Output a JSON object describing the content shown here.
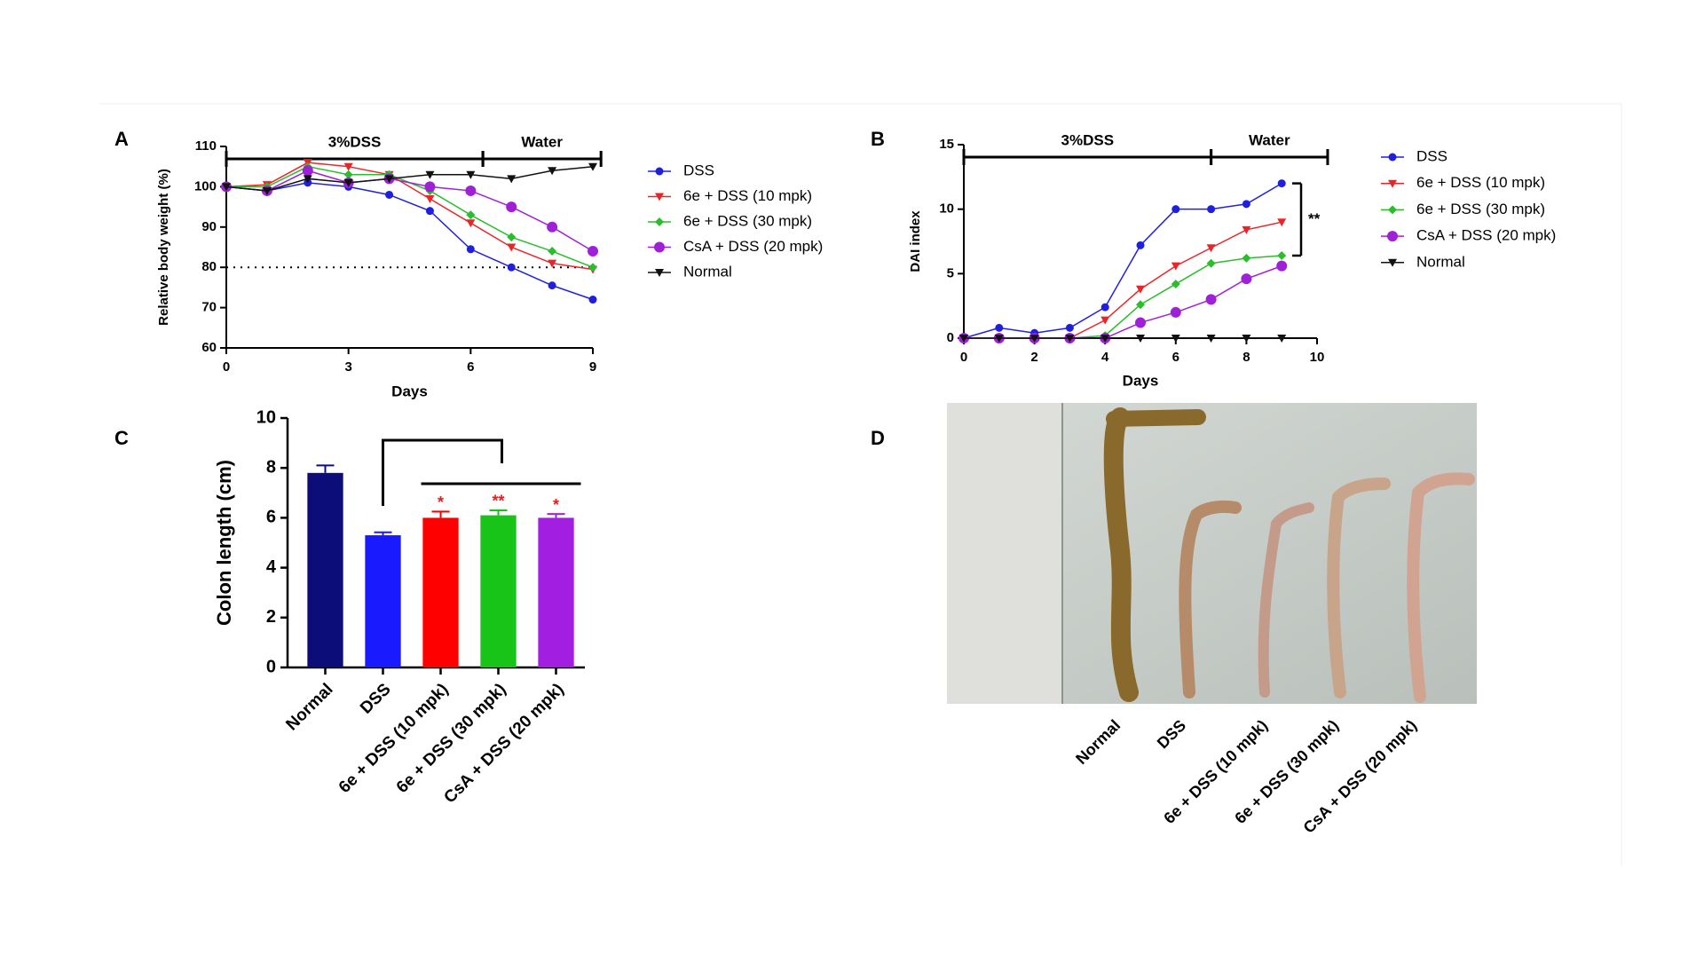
{
  "chart_data": [
    {
      "type": "line",
      "panel": "A",
      "y_label": "Relative body weight (%)",
      "x_label": "Days",
      "x": [
        0,
        1,
        2,
        3,
        4,
        5,
        6,
        7,
        8,
        9
      ],
      "xlim": [
        0,
        9
      ],
      "xticks": [
        0,
        3,
        6,
        9
      ],
      "ylim": [
        60,
        110
      ],
      "yticks": [
        60,
        70,
        80,
        90,
        100,
        110
      ],
      "reference_line": 80,
      "phases": [
        {
          "label": "3%DSS",
          "start": 0,
          "end": 6.3
        },
        {
          "label": "Water",
          "start": 6.3,
          "end": 9.2
        }
      ],
      "series": [
        {
          "name": "DSS",
          "color": "#1f1fe0",
          "marker": "circle",
          "values": [
            100,
            99,
            101,
            100,
            98,
            94,
            84.5,
            80,
            75.5,
            72
          ]
        },
        {
          "name": "6e + DSS (10 mpk)",
          "color": "#e8262a",
          "marker": "triangle-down",
          "values": [
            100,
            100.5,
            106,
            105,
            103,
            97,
            91,
            85,
            81,
            79.5
          ]
        },
        {
          "name": "6e + DSS (30 mpk)",
          "color": "#2bbd2b",
          "marker": "diamond",
          "values": [
            100,
            100,
            105,
            103,
            103,
            99,
            93,
            87.5,
            84,
            80
          ]
        },
        {
          "name": "CsA + DSS (20 mpk)",
          "color": "#a020d8",
          "marker": "big-circle",
          "values": [
            100,
            99,
            104,
            101,
            102,
            100,
            99,
            95,
            90,
            84
          ]
        },
        {
          "name": "Normal",
          "color": "#111111",
          "marker": "triangle-down",
          "values": [
            100,
            99,
            102,
            101,
            102,
            103,
            103,
            102,
            104,
            105
          ]
        }
      ]
    },
    {
      "type": "line",
      "panel": "B",
      "y_label": "DAI index",
      "x_label": "Days",
      "x": [
        0,
        1,
        2,
        3,
        4,
        5,
        6,
        7,
        8,
        9
      ],
      "xlim": [
        0,
        10
      ],
      "xticks": [
        0,
        2,
        4,
        6,
        8,
        10
      ],
      "ylim": [
        0,
        15
      ],
      "yticks": [
        0,
        5,
        10,
        15
      ],
      "phases": [
        {
          "label": "3%DSS",
          "start": 0,
          "end": 7
        },
        {
          "label": "Water",
          "start": 7,
          "end": 10.3
        }
      ],
      "significance": {
        "label": "**",
        "from": 12,
        "to": 6.4
      },
      "series": [
        {
          "name": "DSS",
          "color": "#1f1fe0",
          "marker": "circle",
          "values": [
            0,
            0.8,
            0.4,
            0.8,
            2.4,
            7.2,
            10,
            10,
            10.4,
            12
          ]
        },
        {
          "name": "6e + DSS (10 mpk)",
          "color": "#e8262a",
          "marker": "triangle-down",
          "values": [
            0,
            0,
            0,
            0,
            1.4,
            3.8,
            5.6,
            7,
            8.4,
            9
          ]
        },
        {
          "name": "6e + DSS (30 mpk)",
          "color": "#2bbd2b",
          "marker": "diamond",
          "values": [
            0,
            0,
            0,
            0,
            0.2,
            2.6,
            4.2,
            5.8,
            6.2,
            6.4
          ]
        },
        {
          "name": "CsA + DSS (20 mpk)",
          "color": "#a020d8",
          "marker": "big-circle",
          "values": [
            0,
            0,
            0,
            0,
            0,
            1.2,
            2,
            3,
            4.6,
            5.6
          ]
        },
        {
          "name": "Normal",
          "color": "#111111",
          "marker": "triangle-down",
          "values": [
            0,
            0,
            0,
            0,
            0,
            0,
            0,
            0,
            0,
            0
          ]
        }
      ]
    },
    {
      "type": "bar",
      "panel": "C",
      "y_label": "Colon length (cm)",
      "categories": [
        "Normal",
        "DSS",
        "6e + DSS (10 mpk)",
        "6e + DSS (30 mpk)",
        "CsA + DSS (20 mpk)"
      ],
      "values": [
        7.8,
        5.3,
        6.0,
        6.1,
        6.0
      ],
      "errors": [
        0.3,
        0.12,
        0.25,
        0.2,
        0.15
      ],
      "colors": [
        "#0d0d7a",
        "#1a1aff",
        "#ff0000",
        "#19c419",
        "#a21ee0"
      ],
      "significance_labels": [
        null,
        null,
        "*",
        "**",
        "*"
      ],
      "ylim": [
        0,
        10
      ],
      "yticks": [
        0,
        2,
        4,
        6,
        8,
        10
      ]
    }
  ],
  "photo_panel": {
    "panel": "D",
    "labels": [
      "Normal",
      "DSS",
      "6e + DSS (10 mpk)",
      "6e + DSS (30 mpk)",
      "CsA + DSS (20 mpk)"
    ]
  }
}
